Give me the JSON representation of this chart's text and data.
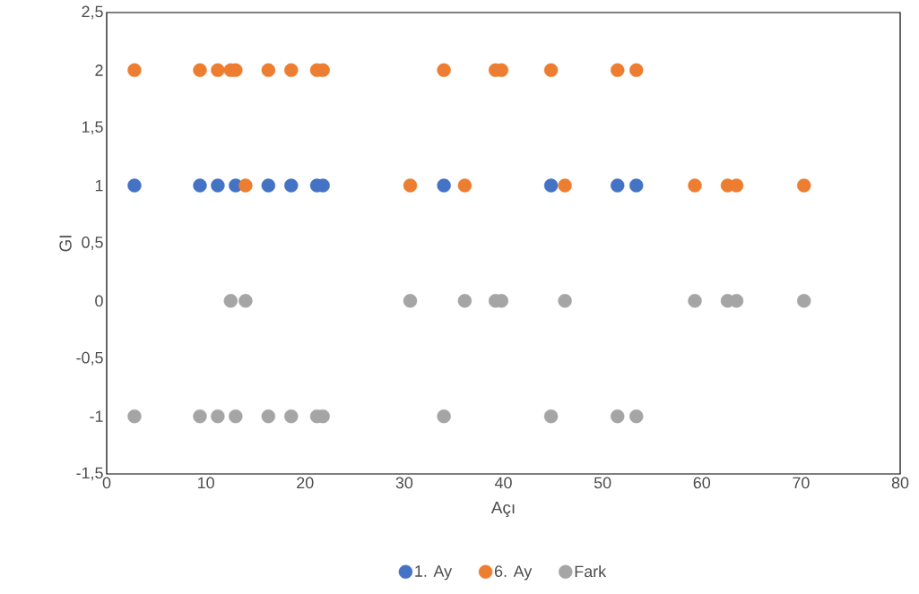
{
  "chart_data": {
    "type": "scatter",
    "xlabel": "Açı",
    "ylabel": "GI",
    "xlim": [
      0,
      80
    ],
    "xticks": [
      0,
      10,
      20,
      30,
      40,
      50,
      60,
      70,
      80
    ],
    "ylim": [
      -1.5,
      2.5
    ],
    "yticks": [
      {
        "value": -1.5,
        "label": "-1,5"
      },
      {
        "value": -1,
        "label": "-1"
      },
      {
        "value": -0.5,
        "label": "-0,5"
      },
      {
        "value": 0,
        "label": "0"
      },
      {
        "value": 0.5,
        "label": "0,5"
      },
      {
        "value": 1,
        "label": "1"
      },
      {
        "value": 1.5,
        "label": "1,5"
      },
      {
        "value": 2,
        "label": "2"
      },
      {
        "value": 2.5,
        "label": "2,5"
      }
    ],
    "grid": false,
    "legend": "bottom",
    "series": [
      {
        "name": "1. Ay",
        "color": "#4472c4",
        "x": [
          2.8,
          9.4,
          11.2,
          13.0,
          16.3,
          18.6,
          21.2,
          21.8,
          34.0,
          44.8,
          51.5,
          53.4
        ],
        "values": [
          1,
          1,
          1,
          1,
          1,
          1,
          1,
          1,
          1,
          1,
          1,
          1
        ]
      },
      {
        "name": "6. Ay",
        "color": "#ed7d31",
        "x": [
          2.8,
          9.4,
          11.2,
          12.5,
          13.0,
          16.3,
          18.6,
          21.2,
          21.8,
          34.0,
          39.2,
          39.8,
          44.8,
          51.5,
          53.4,
          14.0,
          30.6,
          36.1,
          46.2,
          59.3,
          62.6,
          63.5,
          70.3
        ],
        "values": [
          2,
          2,
          2,
          2,
          2,
          2,
          2,
          2,
          2,
          2,
          2,
          2,
          2,
          2,
          2,
          1,
          1,
          1,
          1,
          1,
          1,
          1,
          1
        ]
      },
      {
        "name": "Fark",
        "color": "#a5a5a5",
        "x": [
          2.8,
          9.4,
          11.2,
          13.0,
          16.3,
          18.6,
          21.2,
          21.8,
          34.0,
          44.8,
          51.5,
          53.4,
          12.5,
          14.0,
          30.6,
          36.1,
          39.2,
          39.8,
          46.2,
          59.3,
          62.6,
          63.5,
          70.3
        ],
        "values": [
          -1,
          -1,
          -1,
          -1,
          -1,
          -1,
          -1,
          -1,
          -1,
          -1,
          -1,
          -1,
          0,
          0,
          0,
          0,
          0,
          0,
          0,
          0,
          0,
          0,
          0
        ]
      }
    ]
  }
}
